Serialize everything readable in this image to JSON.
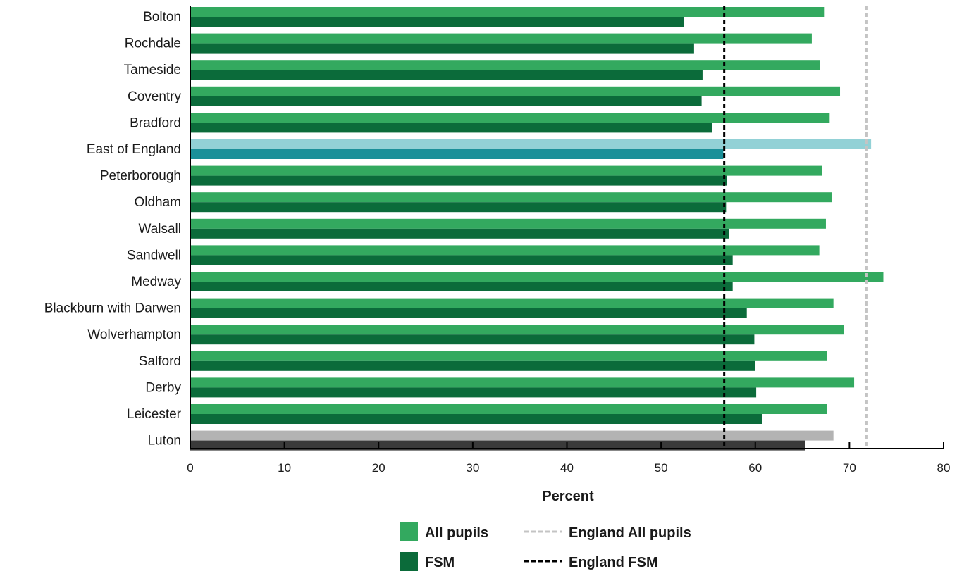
{
  "chart_data": {
    "type": "bar",
    "orientation": "horizontal",
    "title": "",
    "xlabel": "Percent",
    "ylabel": "",
    "xlim": [
      0,
      80
    ],
    "xticks": [
      0,
      10,
      20,
      30,
      40,
      50,
      60,
      70,
      80
    ],
    "grid": false,
    "legend_position": "bottom",
    "categories": [
      "Bolton",
      "Rochdale",
      "Tameside",
      "Coventry",
      "Bradford",
      "East of England",
      "Peterborough",
      "Oldham",
      "Walsall",
      "Sandwell",
      "Medway",
      "Blackburn with Darwen",
      "Wolverhampton",
      "Salford",
      "Derby",
      "Leicester",
      "Luton"
    ],
    "series": [
      {
        "name": "All pupils",
        "color": "#33a95f",
        "values": [
          67.3,
          66.0,
          66.9,
          69.0,
          67.9,
          72.3,
          67.1,
          68.1,
          67.5,
          66.8,
          73.6,
          68.3,
          69.4,
          67.6,
          70.5,
          67.6,
          68.3
        ]
      },
      {
        "name": "FSM",
        "color": "#0b6b3a",
        "values": [
          52.4,
          53.5,
          54.4,
          54.3,
          55.4,
          56.6,
          57.0,
          56.9,
          57.2,
          57.6,
          57.6,
          59.1,
          59.9,
          60.0,
          60.1,
          60.7,
          65.3
        ]
      }
    ],
    "highlights": [
      {
        "category": "East of England",
        "all_pupils_color": "#92d1d6",
        "fsm_color": "#1b9099"
      },
      {
        "category": "Luton",
        "all_pupils_color": "#b3b3b3",
        "fsm_color": "#3a3a3a"
      }
    ],
    "reference_lines": [
      {
        "name": "England All pupils",
        "value": 71.8,
        "color": "#c4c4c4",
        "style": "dashed"
      },
      {
        "name": "England FSM",
        "value": 56.7,
        "color": "#000000",
        "style": "dashed"
      }
    ]
  }
}
